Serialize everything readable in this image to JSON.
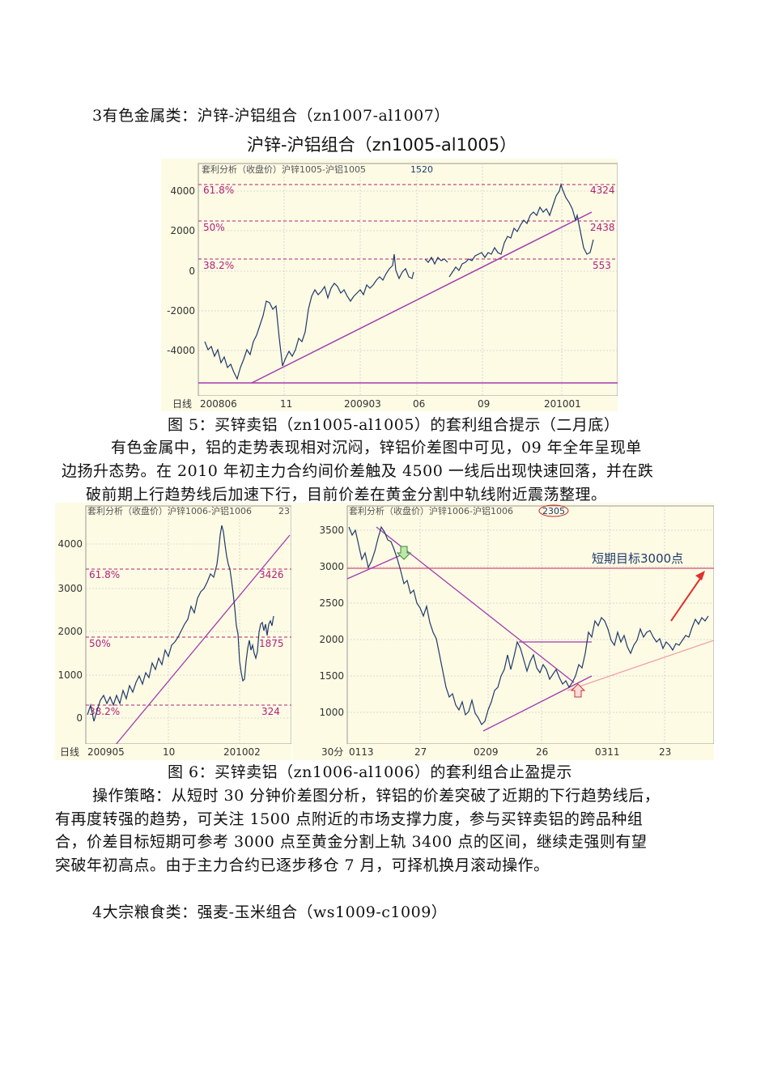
{
  "section3_heading": "3有色金属类：沪锌-沪铝组合（zn1007-al1007）",
  "chart1": {
    "title": "沪锌-沪铝组合（zn1005-al1005）",
    "header": "套利分析（收盘价）沪锌1005-沪铝1005",
    "last_value": "1520",
    "y_ticks": [
      "4000",
      "2000",
      "0",
      "-2000",
      "-4000"
    ],
    "fib_labels": [
      "61.8%",
      "50%",
      "38.2%"
    ],
    "fib_values": [
      "4324",
      "2438",
      "553"
    ],
    "x_axis_name": "日线",
    "x_ticks": [
      "200806",
      "11",
      "200903",
      "06",
      "09",
      "201001"
    ],
    "colors": {
      "line": "#1f3a6b",
      "trend": "#a23bb0",
      "fib": "#b0207a",
      "bg": "#fdfbe4"
    }
  },
  "fig5_caption": "图 5：买锌卖铝（zn1005-al1005）的套利组合提示（二月底）",
  "para1": [
    "有色金属中，铝的走势表现相对沉闷，锌铝价差图中可见，09 年全年呈现单",
    "边扬升态势。在 2010 年初主力合约间价差触及 4500 一线后出现快速回落，并在跌",
    "破前期上行趋势线后加速下行，目前价差在黄金分割中轨线附近震荡整理。"
  ],
  "chart2": {
    "header": "套利分析（收盘价）沪锌1006-沪铝1006",
    "header_value": "23",
    "y_ticks": [
      "4000",
      "3000",
      "2000",
      "1000",
      "0"
    ],
    "fib_labels": [
      "61.8%",
      "50%",
      "38.2%"
    ],
    "fib_values": [
      "3426",
      "1875",
      "324"
    ],
    "x_axis_name": "日线",
    "x_ticks": [
      "200905",
      "10",
      "201002"
    ]
  },
  "chart3": {
    "header": "套利分析（收盘价）沪锌1006-沪铝1006",
    "header_value": "2305",
    "y_ticks": [
      "3500",
      "3000",
      "2500",
      "2000",
      "1500",
      "1000"
    ],
    "target_label": "短期目标3000点",
    "x_axis_name": "30分",
    "x_ticks": [
      "0113",
      "27",
      "0209",
      "26",
      "0311",
      "23"
    ]
  },
  "fig6_caption": "图 6：买锌卖铝（zn1006-al1006）的套利组合止盈提示",
  "para2": [
    "操作策略：从短时 30 分钟价差图分析，锌铝的价差突破了近期的下行趋势线后，",
    "有再度转强的趋势，可关注 1500 点附近的市场支撑力度，参与买锌卖铝的跨品种组",
    "合，价差目标短期可参考 3000 点至黄金分割上轨 3400 点的区间，继续走强则有望",
    "突破年初高点。由于主力合约已逐步移仓 7 月，可择机换月滚动操作。"
  ],
  "section4_heading": "4大宗粮食类：强麦-玉米组合（ws1009-c1009）"
}
